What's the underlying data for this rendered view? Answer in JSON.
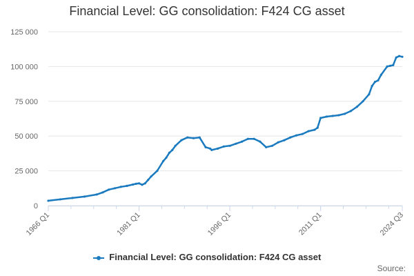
{
  "title": "Financial Level: GG consolidation: F424 CG asset",
  "legend": {
    "label": "Financial Level: GG consolidation: F424 CG asset",
    "color": "#1a7abf"
  },
  "source_label": "Source:",
  "chart_data": {
    "type": "line",
    "title": "Financial Level: GG consolidation: F424 CG asset",
    "xlabel": "",
    "ylabel": "",
    "x_tick_labels": [
      "1966 Q1",
      "1981 Q1",
      "1996 Q1",
      "2011 Q1",
      "2024 Q3"
    ],
    "y_tick_labels": [
      "0",
      "25 000",
      "50 000",
      "75 000",
      "100 000",
      "125 000"
    ],
    "ylim": [
      0,
      125000
    ],
    "xlim": [
      1966.0,
      2024.5
    ],
    "grid": true,
    "legend_position": "bottom-center",
    "series": [
      {
        "name": "Financial Level: GG consolidation: F424 CG asset",
        "color": "#1a7abf",
        "x": [
          1966.0,
          1968.0,
          1970.0,
          1972.0,
          1974.0,
          1975.0,
          1976.0,
          1977.0,
          1978.0,
          1979.0,
          1980.0,
          1980.5,
          1981.0,
          1981.5,
          1982.0,
          1982.5,
          1983.0,
          1984.0,
          1985.0,
          1985.5,
          1986.0,
          1986.5,
          1987.0,
          1988.0,
          1989.0,
          1990.0,
          1991.0,
          1992.0,
          1992.75,
          1993.0,
          1994.0,
          1995.0,
          1996.0,
          1997.0,
          1998.0,
          1999.0,
          2000.0,
          2001.0,
          2002.0,
          2003.0,
          2004.0,
          2005.0,
          2006.0,
          2007.0,
          2008.0,
          2009.0,
          2010.0,
          2010.5,
          2011.0,
          2012.0,
          2013.0,
          2014.0,
          2015.0,
          2016.0,
          2017.0,
          2018.0,
          2019.0,
          2019.5,
          2020.0,
          2020.5,
          2021.0,
          2022.0,
          2022.5,
          2023.0,
          2023.5,
          2024.0,
          2024.5
        ],
        "values": [
          3500,
          4500,
          5500,
          6500,
          8000,
          9500,
          11500,
          12500,
          13500,
          14200,
          15200,
          15700,
          16000,
          15000,
          16000,
          18500,
          21000,
          25000,
          32000,
          34500,
          38000,
          40000,
          43000,
          47000,
          49000,
          48500,
          49000,
          42000,
          41000,
          40000,
          41000,
          42500,
          43000,
          44500,
          46000,
          48000,
          48000,
          46000,
          42000,
          43000,
          45500,
          47000,
          49000,
          50500,
          51500,
          53500,
          54500,
          56000,
          63000,
          64000,
          64500,
          65000,
          66000,
          68000,
          71000,
          75000,
          80000,
          86000,
          89000,
          90000,
          94000,
          100000,
          100500,
          101000,
          106500,
          107500,
          107000
        ]
      }
    ]
  }
}
